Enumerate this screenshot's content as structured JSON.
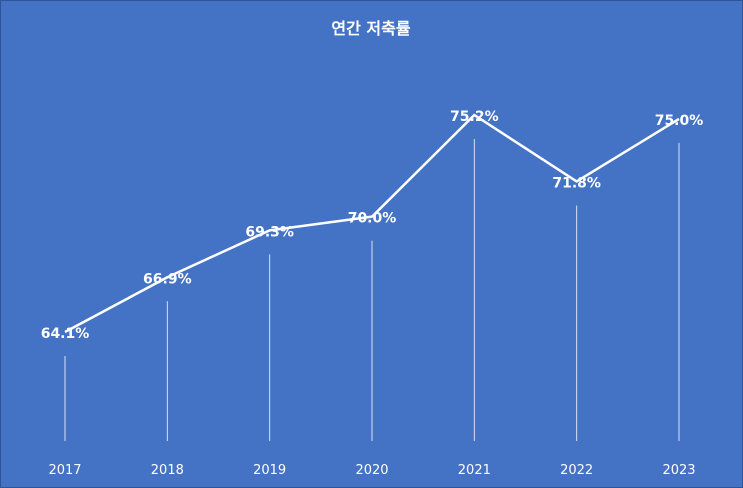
{
  "chart_data": {
    "type": "line",
    "title": "연간 저축률",
    "categories": [
      "2017",
      "2018",
      "2019",
      "2020",
      "2021",
      "2022",
      "2023"
    ],
    "series": [
      {
        "values": [
          64.1,
          66.9,
          69.3,
          70.0,
          75.2,
          71.8,
          75.0
        ],
        "labels": [
          "64.1%",
          "66.9%",
          "69.3%",
          "70.0%",
          "75.2%",
          "71.8%",
          "75.0%"
        ]
      }
    ],
    "drop_lines": true,
    "grid": false,
    "colors": {
      "background": "#4472c4",
      "line": "#ffffff",
      "drop_line": "#d9e2f3",
      "text": "#ffffff"
    }
  }
}
